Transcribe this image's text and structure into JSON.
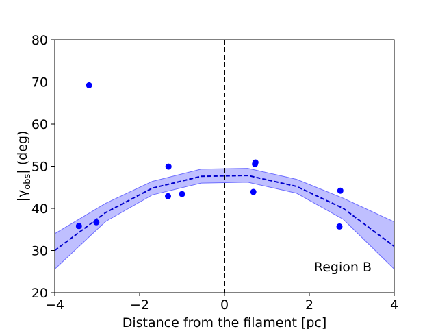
{
  "chart_data": {
    "type": "scatter",
    "title": "",
    "xlabel": "Distance from the filament [pc]",
    "ylabel": "|γ_obs| (deg)",
    "ylabel_base": "|γ",
    "ylabel_sub": "obs",
    "ylabel_tail": "| (deg)",
    "xlim": [
      -4,
      4
    ],
    "ylim": [
      20,
      80
    ],
    "xticks": [
      -4,
      -2,
      0,
      2,
      4
    ],
    "xtick_labels": [
      "−4",
      "−2",
      "0",
      "2",
      "4"
    ],
    "yticks": [
      20,
      30,
      40,
      50,
      60,
      70,
      80
    ],
    "ytick_labels": [
      "20",
      "30",
      "40",
      "50",
      "60",
      "70",
      "80"
    ],
    "grid": false,
    "annotation": "Region B",
    "vline_x": 0,
    "colors": {
      "points": "#0000ff",
      "model_line": "#0000cc",
      "band_fill": "#8080ff",
      "band_edge": "#6b6bff"
    },
    "points": {
      "x": [
        -3.43,
        -3.19,
        -3.02,
        -1.32,
        -1.33,
        -1.0,
        0.68,
        0.72,
        0.73,
        2.71,
        2.73
      ],
      "y": [
        35.8,
        69.2,
        36.7,
        49.9,
        42.9,
        43.4,
        43.9,
        50.5,
        50.9,
        35.7,
        44.2
      ]
    },
    "model": {
      "x": [
        -4,
        -2.8,
        -1.7,
        -0.55,
        0.55,
        1.7,
        2.8,
        4
      ],
      "y": [
        30.0,
        39.0,
        44.8,
        47.6,
        47.8,
        45.2,
        40.0,
        31.0
      ],
      "upper": [
        34.0,
        41.2,
        46.4,
        49.3,
        49.5,
        46.9,
        42.4,
        36.8
      ],
      "lower": [
        25.6,
        36.9,
        43.2,
        46.0,
        46.2,
        43.6,
        37.4,
        25.6
      ]
    }
  }
}
